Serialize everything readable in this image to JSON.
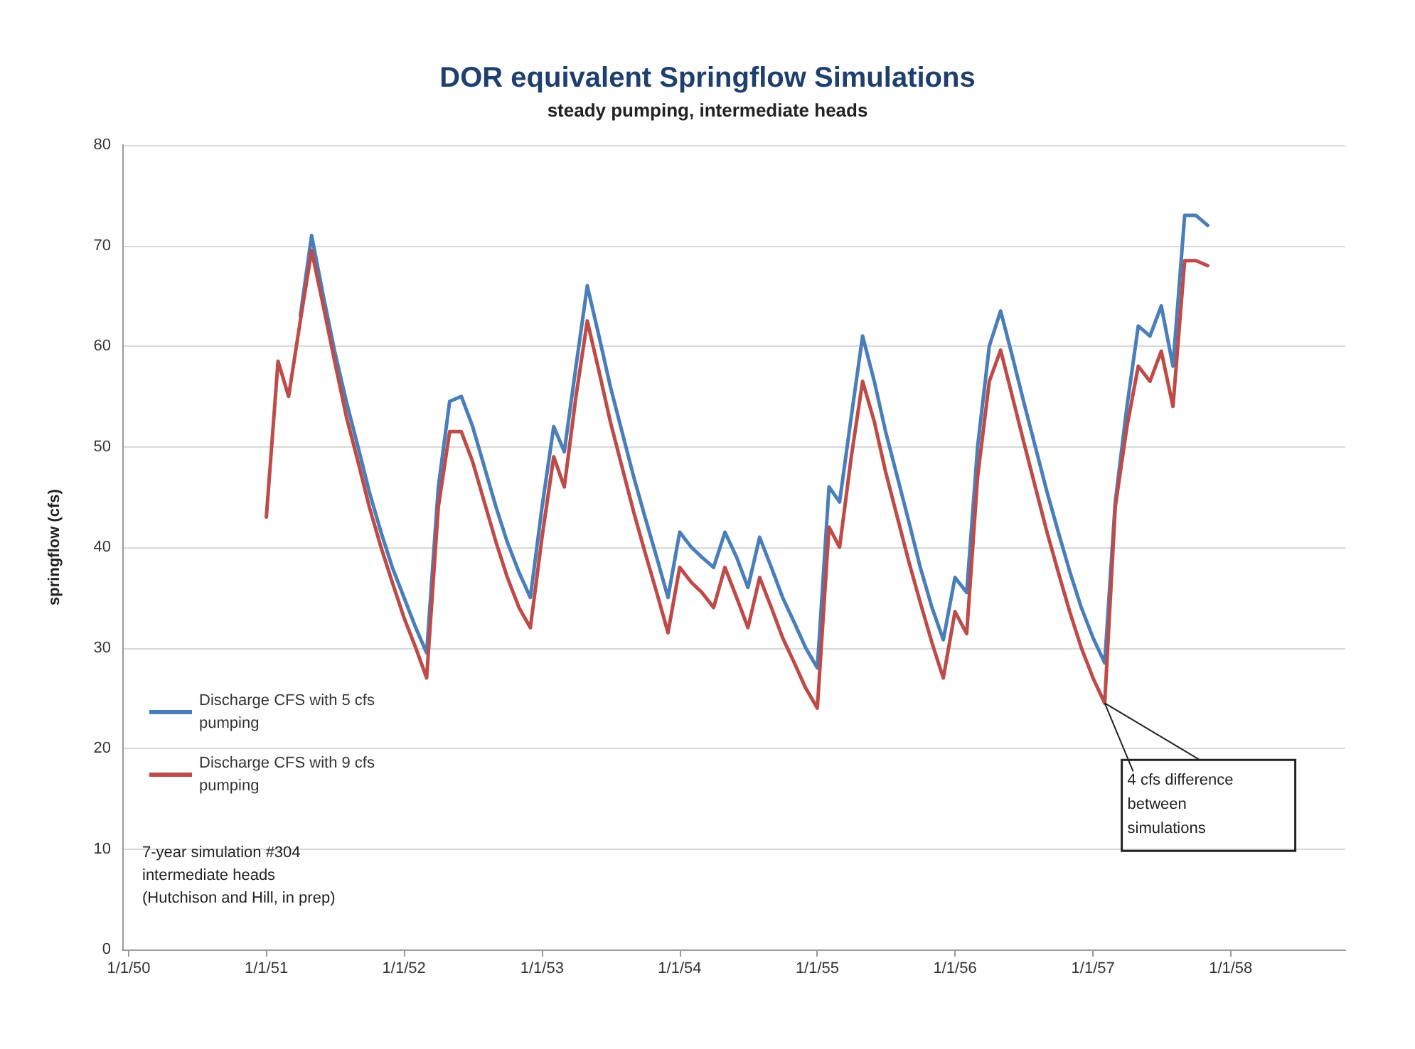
{
  "chart_data": {
    "type": "line",
    "title": "DOR equivalent Springflow Simulations",
    "subtitle": "steady pumping, intermediate heads",
    "ylabel": "springflow (cfs)",
    "x": [
      "1951-01",
      "1951-02",
      "1951-03",
      "1951-04",
      "1951-05",
      "1951-06",
      "1951-07",
      "1951-08",
      "1951-09",
      "1951-10",
      "1951-11",
      "1951-12",
      "1952-01",
      "1952-02",
      "1952-03",
      "1952-04",
      "1952-05",
      "1952-06",
      "1952-07",
      "1952-08",
      "1952-09",
      "1952-10",
      "1952-11",
      "1952-12",
      "1953-01",
      "1953-02",
      "1953-03",
      "1953-04",
      "1953-05",
      "1953-06",
      "1953-07",
      "1953-08",
      "1953-09",
      "1953-10",
      "1953-11",
      "1953-12",
      "1954-01",
      "1954-02",
      "1954-03",
      "1954-04",
      "1954-05",
      "1954-06",
      "1954-07",
      "1954-08",
      "1954-09",
      "1954-10",
      "1954-11",
      "1954-12",
      "1955-01",
      "1955-02",
      "1955-03",
      "1955-04",
      "1955-05",
      "1955-06",
      "1955-07",
      "1955-08",
      "1955-09",
      "1955-10",
      "1955-11",
      "1955-12",
      "1956-01",
      "1956-02",
      "1956-03",
      "1956-04",
      "1956-05",
      "1956-06",
      "1956-07",
      "1956-08",
      "1956-09",
      "1956-10",
      "1956-11",
      "1956-12",
      "1957-01",
      "1957-02",
      "1957-03",
      "1957-04",
      "1957-05",
      "1957-06",
      "1957-07",
      "1957-08",
      "1957-09",
      "1957-10",
      "1957-11"
    ],
    "series": [
      {
        "name": "Discharge CFS with 5 cfs pumping",
        "color": "#4a7ebb",
        "values": [
          null,
          null,
          null,
          63,
          71,
          65,
          59.5,
          54.5,
          50,
          45.5,
          41.5,
          38,
          35,
          32,
          29.5,
          46,
          54.5,
          55,
          52,
          48,
          44,
          40.5,
          37.5,
          35,
          44,
          52,
          49.5,
          58,
          66,
          61,
          56,
          51.5,
          47,
          43,
          39,
          35,
          41.5,
          40,
          39,
          38,
          41.5,
          39,
          36,
          41,
          38,
          35,
          32.5,
          30,
          28,
          46,
          44.5,
          53,
          61,
          56.5,
          51.5,
          47,
          42.5,
          38,
          34,
          30.8,
          37,
          35.5,
          50,
          60,
          63.5,
          59,
          54.5,
          50,
          45.5,
          41.5,
          37.5,
          34,
          31,
          28.5,
          44.5,
          54,
          62,
          61,
          64,
          58,
          73,
          73,
          72
        ]
      },
      {
        "name": "Discharge CFS with 9 cfs pumping",
        "color": "#be4b48",
        "values": [
          43,
          58.5,
          55,
          62.5,
          69.5,
          64,
          58.5,
          53,
          48.5,
          44,
          40,
          36.5,
          33,
          30,
          27,
          44,
          51.5,
          51.5,
          48.5,
          44.5,
          40.5,
          37,
          34,
          32,
          41,
          49,
          46,
          55,
          62.5,
          57.5,
          52.5,
          48,
          43.5,
          39.5,
          35.5,
          31.5,
          38,
          36.5,
          35.5,
          34,
          38,
          35,
          32,
          37,
          34,
          31,
          28.5,
          26,
          24,
          42,
          40,
          49,
          56.5,
          52.5,
          47.5,
          43,
          38.5,
          34.5,
          30.5,
          27,
          33.6,
          31.4,
          47,
          56.5,
          59.6,
          55,
          50.5,
          46,
          41.5,
          37.5,
          33.5,
          30,
          27,
          24.5,
          44,
          52,
          58,
          56.5,
          59.5,
          54,
          68.5,
          68.5,
          68
        ]
      }
    ],
    "xlim": [
      "1949-12-15",
      "1958-11-01"
    ],
    "xticks": [
      {
        "value": "1950-01-01",
        "label": "1/1/50"
      },
      {
        "value": "1951-01-01",
        "label": "1/1/51"
      },
      {
        "value": "1952-01-01",
        "label": "1/1/52"
      },
      {
        "value": "1953-01-01",
        "label": "1/1/53"
      },
      {
        "value": "1954-01-01",
        "label": "1/1/54"
      },
      {
        "value": "1955-01-01",
        "label": "1/1/55"
      },
      {
        "value": "1956-01-01",
        "label": "1/1/56"
      },
      {
        "value": "1957-01-01",
        "label": "1/1/57"
      },
      {
        "value": "1958-01-01",
        "label": "1/1/58"
      }
    ],
    "ylim": [
      0,
      80
    ],
    "yticks": [
      0,
      10,
      20,
      30,
      40,
      50,
      60,
      70,
      80
    ],
    "grid": "y",
    "legend": "left",
    "marker": "none",
    "line_style": "solid",
    "annotations": [
      {
        "text": "4 cfs difference between simulations",
        "x": "1957-02",
        "y": 24.5
      },
      "7-year simulation #304\nintermediate heads\n(Hutchison and Hill, in prep)"
    ]
  }
}
